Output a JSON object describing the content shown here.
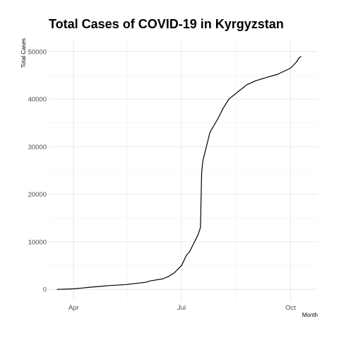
{
  "chart_data": {
    "type": "line",
    "title": "Total Cases of COVID-19 in Kyrgyzstan",
    "xlabel": "Month",
    "ylabel": "Total Cases",
    "x_ticks": [
      "2020-04-01",
      "2020-07-01",
      "2020-10-01"
    ],
    "x_tick_labels": [
      "Apr",
      "Jul",
      "Oct"
    ],
    "y_ticks": [
      0,
      10000,
      20000,
      30000,
      40000,
      50000
    ],
    "y_tick_labels": [
      "0",
      "10000",
      "20000",
      "30000",
      "40000",
      "50000"
    ],
    "xlim": [
      "2020-03-11",
      "2020-10-24"
    ],
    "ylim": [
      -2500,
      52500
    ],
    "grid": true,
    "legend": "none",
    "series": [
      {
        "color": "#000000",
        "points": [
          [
            "2020-03-18",
            0
          ],
          [
            "2020-03-25",
            50
          ],
          [
            "2020-04-01",
            120
          ],
          [
            "2020-04-08",
            280
          ],
          [
            "2020-04-15",
            450
          ],
          [
            "2020-04-22",
            600
          ],
          [
            "2020-05-01",
            800
          ],
          [
            "2020-05-15",
            1000
          ],
          [
            "2020-06-01",
            1500
          ],
          [
            "2020-06-05",
            1800
          ],
          [
            "2020-06-15",
            2200
          ],
          [
            "2020-06-20",
            2700
          ],
          [
            "2020-06-25",
            3500
          ],
          [
            "2020-07-01",
            5000
          ],
          [
            "2020-07-03",
            6000
          ],
          [
            "2020-07-05",
            7100
          ],
          [
            "2020-07-08",
            8000
          ],
          [
            "2020-07-12",
            10000
          ],
          [
            "2020-07-15",
            11500
          ],
          [
            "2020-07-17",
            13000
          ],
          [
            "2020-07-18",
            24500
          ],
          [
            "2020-07-19",
            27000
          ],
          [
            "2020-07-22",
            30000
          ],
          [
            "2020-07-25",
            33000
          ],
          [
            "2020-08-01",
            36000
          ],
          [
            "2020-08-05",
            38000
          ],
          [
            "2020-08-10",
            40000
          ],
          [
            "2020-08-15",
            41000
          ],
          [
            "2020-08-20",
            42000
          ],
          [
            "2020-08-25",
            43000
          ],
          [
            "2020-09-01",
            43800
          ],
          [
            "2020-09-10",
            44500
          ],
          [
            "2020-09-20",
            45200
          ],
          [
            "2020-10-01",
            46500
          ],
          [
            "2020-10-06",
            47800
          ],
          [
            "2020-10-08",
            48600
          ],
          [
            "2020-10-10",
            49000
          ]
        ]
      }
    ]
  }
}
